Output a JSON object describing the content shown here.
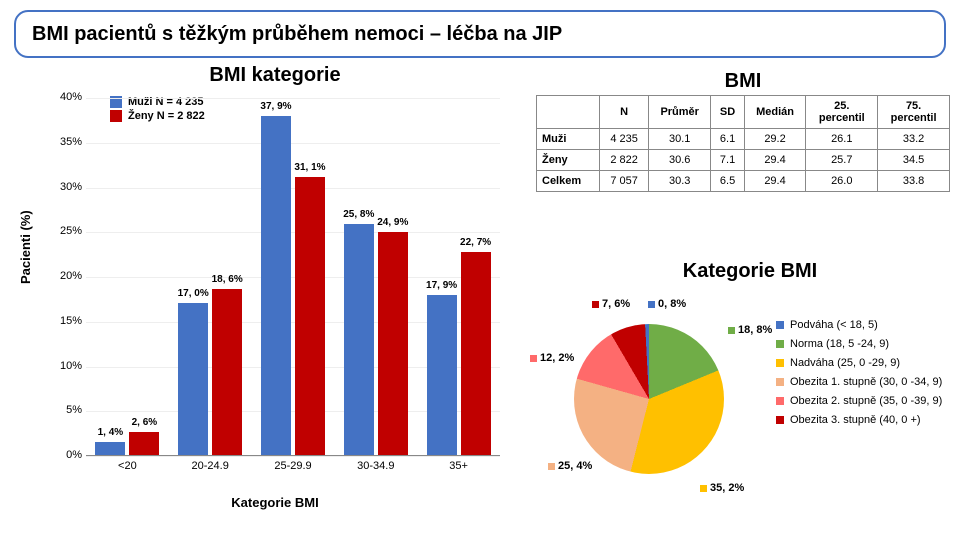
{
  "colors": {
    "male": "#4472c4",
    "female": "#c00000",
    "border": "#4472c4",
    "grid": "#eeeeee"
  },
  "title": "BMI pacientů s těžkým průběhem nemoci – léčba na JIP",
  "barchart": {
    "type": "bar",
    "title": "BMI kategorie",
    "legend": {
      "male": "Muži N = 4 235",
      "female": "Ženy N = 2 822"
    },
    "ylabel": "Pacienti (%)",
    "xlabel": "Kategorie BMI",
    "ylim": [
      0,
      40
    ],
    "ytick_step": 5,
    "categories": [
      "<20",
      "20-24.9",
      "25-29.9",
      "30-34.9",
      "35+"
    ],
    "male": {
      "values": [
        1.4,
        17.0,
        37.9,
        25.8,
        17.9
      ],
      "labels": [
        "1, 4%",
        "17, 0%",
        "37, 9%",
        "25, 8%",
        "17, 9%"
      ]
    },
    "female": {
      "values": [
        2.6,
        18.6,
        31.1,
        24.9,
        22.7
      ],
      "labels": [
        "2, 6%",
        "18, 6%",
        "31, 1%",
        "24, 9%",
        "22, 7%"
      ]
    }
  },
  "table": {
    "title": "BMI",
    "columns": [
      "",
      "N",
      "Průměr",
      "SD",
      "Medián",
      "25.\npercentil",
      "75.\npercentil"
    ],
    "rows": [
      [
        "Muži",
        "4 235",
        "30.1",
        "6.1",
        "29.2",
        "26.1",
        "33.2"
      ],
      [
        "Ženy",
        "2 822",
        "30.6",
        "7.1",
        "29.4",
        "25.7",
        "34.5"
      ],
      [
        "Celkem",
        "7 057",
        "30.3",
        "6.5",
        "29.4",
        "26.0",
        "33.8"
      ]
    ]
  },
  "pie": {
    "title": "Kategorie BMI",
    "slices": [
      {
        "label": "Podváha (< 18, 5)",
        "pct": 0.8,
        "disp": "0, 8%",
        "color": "#4472c4"
      },
      {
        "label": "Norma (18, 5 -24, 9)",
        "pct": 18.8,
        "disp": "18, 8%",
        "color": "#70ad47"
      },
      {
        "label": "Nadváha (25, 0 -29, 9)",
        "pct": 35.2,
        "disp": "35, 2%",
        "color": "#ffc000"
      },
      {
        "label": "Obezita 1. stupně (30, 0 -34, 9)",
        "pct": 25.4,
        "disp": "25, 4%",
        "color": "#f4b183"
      },
      {
        "label": "Obezita 2. stupně (35, 0 -39, 9)",
        "pct": 12.2,
        "disp": "12, 2%",
        "color": "#ff6a6a"
      },
      {
        "label": "Obezita 3. stupně (40, 0 +)",
        "pct": 7.6,
        "disp": "7, 6%",
        "color": "#c00000"
      }
    ]
  }
}
